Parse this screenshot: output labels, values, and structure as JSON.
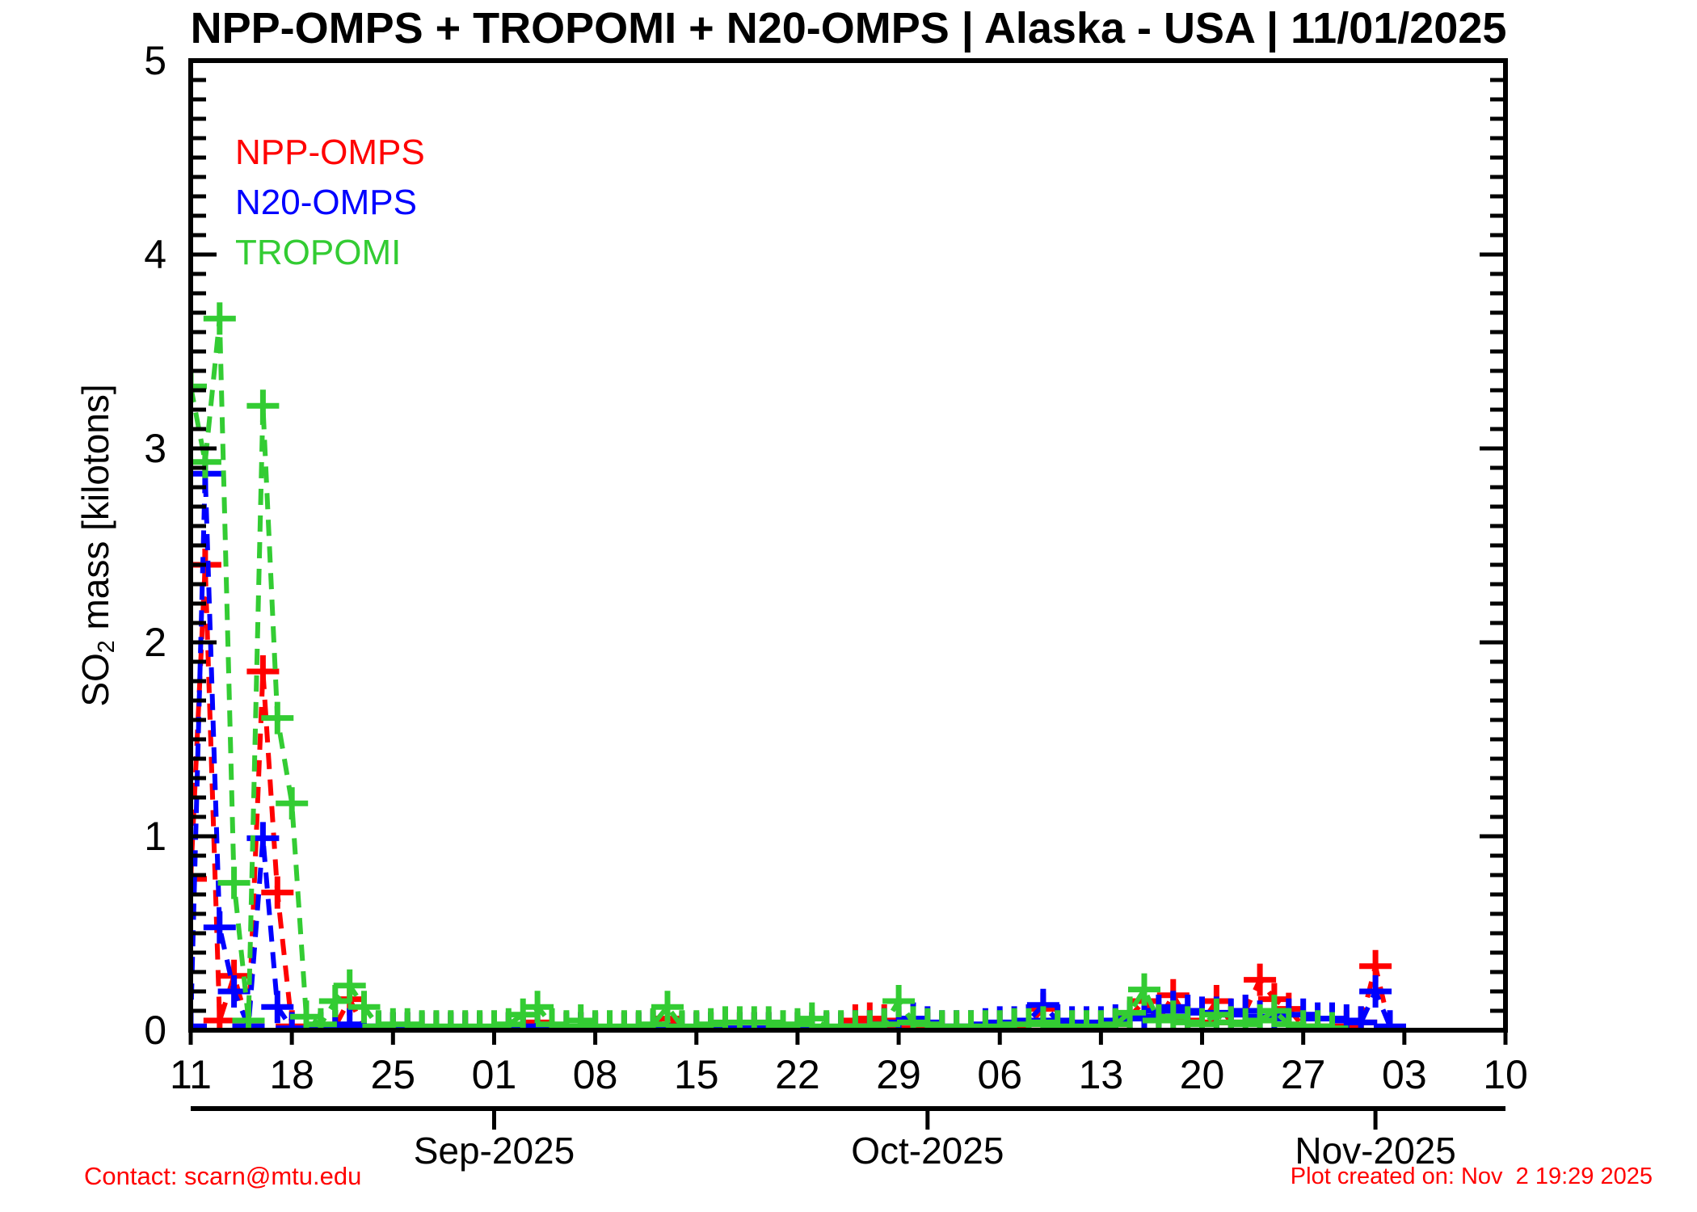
{
  "title": "NPP-OMPS + TROPOMI + N20-OMPS | Alaska - USA | 11/01/2025",
  "ylabel": {
    "prefix": "SO",
    "sub": "2",
    "suffix": " mass [kilotons]"
  },
  "legend": [
    {
      "label": "NPP-OMPS",
      "color": "#ff0000"
    },
    {
      "label": "N20-OMPS",
      "color": "#0000ff"
    },
    {
      "label": "TROPOMI",
      "color": "#33cc33"
    }
  ],
  "footer": {
    "contact": "Contact: scarn@mtu.edu",
    "created": "Plot created on: Nov  2 19:29 2025"
  },
  "chart_data": {
    "type": "line",
    "title": "NPP-OMPS + TROPOMI + N20-OMPS | Alaska - USA | 11/01/2025",
    "xlabel": "",
    "ylabel": "SO2 mass [kilotons]",
    "ylim": [
      0,
      5
    ],
    "y_ticks": [
      "0",
      "1",
      "2",
      "3",
      "4",
      "5"
    ],
    "y_minor_step": 0.1,
    "grid": false,
    "legend_position": "top-left",
    "line_style": "dashed",
    "marker": "plus",
    "x_axis": {
      "start_date": "2025-08-11",
      "end_date": "2025-11-10",
      "span_days": 91,
      "major_tick_interval_days": 7,
      "major_tick_labels": [
        "11",
        "18",
        "25",
        "01",
        "08",
        "15",
        "22",
        "29",
        "06",
        "13",
        "20",
        "27",
        "03",
        "10"
      ],
      "month_ticks": [
        {
          "label": "Sep-2025",
          "day": 21
        },
        {
          "label": "Oct-2025",
          "day": 51
        },
        {
          "label": "Nov-2025",
          "day": 82
        }
      ]
    },
    "series": [
      {
        "name": "NPP-OMPS",
        "color": "#ff0000",
        "start_day": 0,
        "sampling": "daily",
        "values": [
          0.78,
          2.4,
          0.05,
          0.28,
          0.02,
          1.85,
          0.71,
          0.02,
          0.01,
          0.01,
          0.02,
          0.16,
          0.01,
          0.01,
          0.01,
          0.01,
          0.01,
          0.01,
          0.01,
          0.01,
          0.01,
          0.01,
          0.01,
          0.01,
          0.04,
          0.01,
          0.01,
          0.01,
          0.01,
          0.01,
          0.01,
          0.01,
          0.02,
          0.06,
          0.01,
          0.01,
          0.01,
          0.01,
          0.01,
          0.01,
          0.01,
          0.01,
          0.01,
          0.01,
          0.01,
          0.01,
          0.05,
          0.06,
          0.05,
          0.01,
          0.01,
          0.01,
          0.01,
          0.01,
          0.01,
          0.01,
          0.02,
          0.02,
          0.03,
          0.11,
          0.02,
          0.02,
          0.02,
          0.02,
          0.03,
          0.07,
          0.15,
          0.05,
          0.18,
          0.05,
          0.04,
          0.15,
          0.04,
          0.1,
          0.26,
          0.16,
          0.11,
          0.02,
          0.02,
          0.02,
          0.02,
          0.04,
          0.33,
          0.01
        ]
      },
      {
        "name": "N20-OMPS",
        "color": "#0000ff",
        "start_day": 0,
        "sampling": "daily",
        "values": [
          0.02,
          2.87,
          0.53,
          0.2,
          0.02,
          0.99,
          0.12,
          0.01,
          0.01,
          0.01,
          0.02,
          0.03,
          0.02,
          0.01,
          0.01,
          0.01,
          0.01,
          0.01,
          0.01,
          0.01,
          0.01,
          0.01,
          0.01,
          0.01,
          0.02,
          0.01,
          0.01,
          0.01,
          0.01,
          0.01,
          0.01,
          0.01,
          0.01,
          0.02,
          0.01,
          0.01,
          0.01,
          0.01,
          0.01,
          0.01,
          0.01,
          0.01,
          0.01,
          0.01,
          0.01,
          0.01,
          0.02,
          0.02,
          0.03,
          0.04,
          0.06,
          0.04,
          0.02,
          0.02,
          0.02,
          0.03,
          0.04,
          0.04,
          0.05,
          0.13,
          0.05,
          0.04,
          0.04,
          0.04,
          0.05,
          0.06,
          0.07,
          0.1,
          0.12,
          0.1,
          0.09,
          0.09,
          0.08,
          0.1,
          0.07,
          0.06,
          0.08,
          0.08,
          0.06,
          0.06,
          0.05,
          0.04,
          0.2,
          0.02
        ]
      },
      {
        "name": "TROPOMI",
        "color": "#33cc33",
        "start_day": 0,
        "sampling": "daily",
        "values": [
          3.32,
          2.93,
          3.67,
          0.76,
          0.05,
          3.22,
          1.61,
          1.17,
          0.07,
          0.03,
          0.15,
          0.23,
          0.12,
          0.02,
          0.03,
          0.03,
          0.02,
          0.02,
          0.02,
          0.02,
          0.02,
          0.02,
          0.03,
          0.08,
          0.12,
          0.03,
          0.02,
          0.05,
          0.02,
          0.02,
          0.02,
          0.02,
          0.03,
          0.12,
          0.02,
          0.02,
          0.03,
          0.04,
          0.04,
          0.04,
          0.04,
          0.02,
          0.03,
          0.06,
          0.02,
          0.02,
          0.02,
          0.02,
          0.03,
          0.15,
          0.04,
          0.03,
          0.02,
          0.02,
          0.02,
          0.02,
          0.02,
          0.03,
          0.03,
          0.04,
          0.02,
          0.02,
          0.02,
          0.02,
          0.03,
          0.09,
          0.21,
          0.05,
          0.07,
          0.04,
          0.03,
          0.08,
          0.04,
          0.03,
          0.05,
          0.1,
          0.03,
          0.02,
          0.02,
          0.01
        ]
      }
    ]
  }
}
